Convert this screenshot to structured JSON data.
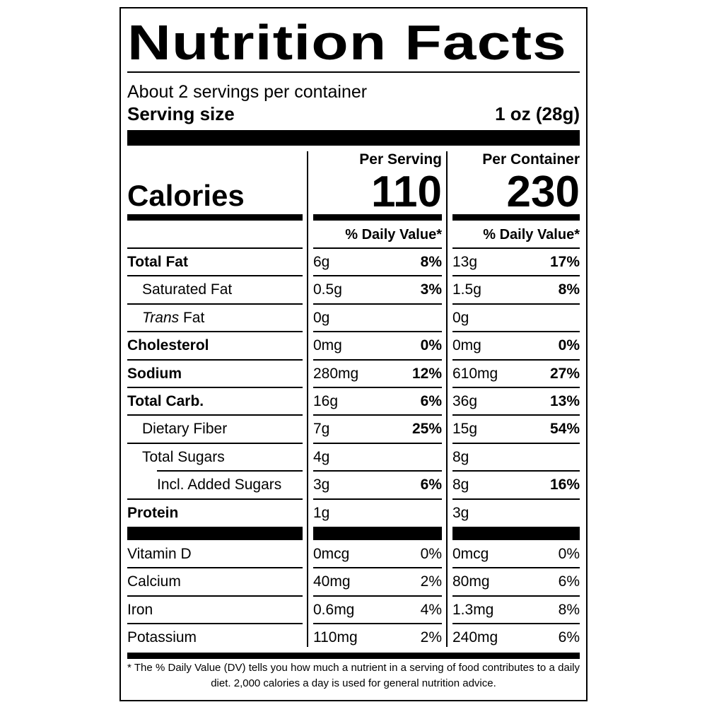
{
  "title": "Nutrition Facts",
  "servings": "About 2 servings per container",
  "serving_size": {
    "label": "Serving size",
    "value": "1 oz (28g)"
  },
  "calories": {
    "label": "Calories",
    "columns": [
      {
        "header": "Per Serving",
        "value": "110"
      },
      {
        "header": "Per Container",
        "value": "230"
      }
    ]
  },
  "daily_value_headers": [
    "% Daily Value*",
    "% Daily Value*"
  ],
  "nutrients": [
    {
      "name": "Total Fat",
      "bold": true,
      "indent": 0,
      "columns": [
        [
          "6g",
          "8%"
        ],
        [
          "13g",
          "17%"
        ]
      ]
    },
    {
      "name": "Saturated Fat",
      "bold": false,
      "indent": 1,
      "columns": [
        [
          "0.5g",
          "3%"
        ],
        [
          "1.5g",
          "8%"
        ]
      ]
    },
    {
      "italic": "Trans",
      "name": "Fat",
      "bold": false,
      "indent": 1,
      "columns": [
        [
          "0g",
          null
        ],
        [
          "0g",
          null
        ]
      ]
    },
    {
      "name": "Cholesterol",
      "bold": true,
      "indent": 0,
      "columns": [
        [
          "0mg",
          "0%"
        ],
        [
          "0mg",
          "0%"
        ]
      ]
    },
    {
      "name": "Sodium",
      "bold": true,
      "indent": 0,
      "columns": [
        [
          "280mg",
          "12%"
        ],
        [
          "610mg",
          "27%"
        ]
      ]
    },
    {
      "name": "Total Carb.",
      "bold": true,
      "indent": 0,
      "columns": [
        [
          "16g",
          "6%"
        ],
        [
          "36g",
          "13%"
        ]
      ]
    },
    {
      "name": "Dietary Fiber",
      "bold": false,
      "indent": 1,
      "columns": [
        [
          "7g",
          "25%"
        ],
        [
          "15g",
          "54%"
        ]
      ]
    },
    {
      "name": "Total Sugars",
      "bold": false,
      "indent": 1,
      "columns": [
        [
          "4g",
          null
        ],
        [
          "8g",
          null
        ]
      ]
    },
    {
      "name": "Incl. Added Sugars",
      "bold": false,
      "indent": 2,
      "columns": [
        [
          "3g",
          "6%"
        ],
        [
          "8g",
          "16%"
        ]
      ]
    },
    {
      "name": "Protein",
      "bold": true,
      "indent": 0,
      "columns": [
        [
          "1g",
          null
        ],
        [
          "3g",
          null
        ]
      ]
    }
  ],
  "vitamins": [
    {
      "name": "Vitamin D",
      "columns": [
        [
          "0mcg",
          "0%"
        ],
        [
          "0mcg",
          "0%"
        ]
      ]
    },
    {
      "name": "Calcium",
      "columns": [
        [
          "40mg",
          "2%"
        ],
        [
          "80mg",
          "6%"
        ]
      ]
    },
    {
      "name": "Iron",
      "columns": [
        [
          "0.6mg",
          "4%"
        ],
        [
          "1.3mg",
          "8%"
        ]
      ]
    },
    {
      "name": "Potassium",
      "columns": [
        [
          "110mg",
          "2%"
        ],
        [
          "240mg",
          "6%"
        ]
      ]
    }
  ],
  "footnote": "* The % Daily Value (DV) tells you how much a nutrient in a serving of food contributes to a daily diet. 2,000 calories a day is used for general nutrition advice."
}
